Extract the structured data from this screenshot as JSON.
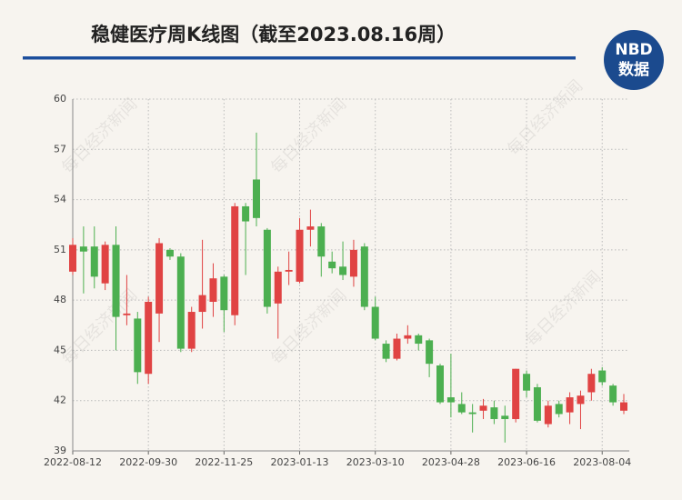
{
  "chart_data": {
    "type": "candlestick",
    "title": "稳健医疗周K线图（截至2023.08.16周）",
    "logo": {
      "top": "NBD",
      "bottom": "数据"
    },
    "watermark": "每日经济新闻",
    "categories": [
      "2022-08-12",
      null,
      null,
      null,
      null,
      null,
      null,
      "2022-09-30",
      null,
      null,
      null,
      null,
      null,
      null,
      "2022-11-25",
      null,
      null,
      null,
      null,
      null,
      null,
      "2023-01-13",
      null,
      null,
      null,
      null,
      null,
      null,
      "2023-03-10",
      null,
      null,
      null,
      null,
      null,
      null,
      "2023-04-28",
      null,
      null,
      null,
      null,
      null,
      null,
      "2023-06-16",
      null,
      null,
      null,
      null,
      null,
      null,
      "2023-08-04",
      null,
      null
    ],
    "open": [
      49.7,
      51.2,
      51.2,
      49.0,
      51.3,
      47.1,
      46.9,
      43.6,
      47.2,
      51.0,
      50.6,
      45.1,
      47.3,
      47.9,
      49.4,
      47.1,
      53.6,
      55.2,
      52.2,
      47.8,
      49.7,
      49.1,
      52.2,
      52.4,
      50.3,
      50.0,
      49.4,
      51.2,
      47.6,
      45.4,
      44.5,
      45.7,
      45.9,
      45.6,
      44.1,
      42.2,
      41.8,
      41.3,
      41.4,
      41.6,
      41.1,
      40.9,
      43.6,
      42.8,
      40.6,
      41.8,
      41.3,
      41.8,
      42.5,
      43.8,
      42.9,
      41.4
    ],
    "high": [
      51.7,
      52.4,
      52.4,
      51.5,
      52.4,
      49.5,
      47.3,
      48.2,
      51.7,
      51.1,
      50.8,
      47.6,
      51.6,
      50.2,
      49.5,
      53.8,
      53.8,
      58.0,
      52.3,
      50.0,
      50.9,
      52.9,
      53.4,
      52.6,
      50.9,
      51.5,
      51.6,
      51.4,
      48.2,
      45.6,
      46.0,
      46.5,
      46.0,
      45.7,
      44.2,
      44.8,
      42.5,
      41.8,
      42.1,
      42.0,
      41.7,
      43.9,
      43.8,
      43.0,
      42.0,
      42.0,
      42.5,
      42.6,
      43.9,
      44.0,
      43.0,
      42.4
    ],
    "low": [
      49.5,
      48.4,
      48.7,
      48.6,
      45.0,
      46.5,
      43.0,
      43.0,
      45.5,
      50.4,
      44.9,
      44.9,
      46.3,
      47.0,
      46.1,
      46.5,
      49.5,
      52.4,
      47.2,
      45.7,
      48.9,
      49.0,
      51.2,
      49.4,
      49.6,
      49.2,
      48.8,
      47.4,
      45.6,
      44.3,
      44.4,
      45.4,
      45.0,
      43.4,
      41.8,
      41.0,
      41.2,
      40.1,
      40.9,
      40.6,
      39.5,
      40.7,
      42.2,
      40.7,
      40.4,
      41.0,
      40.6,
      40.3,
      42.0,
      42.9,
      41.7,
      41.2
    ],
    "close": [
      51.3,
      50.9,
      49.4,
      51.3,
      47.0,
      47.2,
      43.7,
      47.9,
      51.4,
      50.6,
      45.1,
      47.3,
      48.3,
      49.3,
      47.4,
      53.6,
      52.7,
      52.9,
      47.6,
      49.7,
      49.8,
      52.2,
      52.4,
      50.6,
      49.9,
      49.5,
      51.0,
      47.6,
      45.7,
      44.5,
      45.7,
      45.9,
      45.4,
      44.2,
      41.9,
      41.9,
      41.3,
      41.2,
      41.7,
      40.9,
      40.9,
      43.9,
      42.6,
      40.8,
      41.7,
      41.2,
      42.2,
      42.3,
      43.6,
      43.1,
      41.9,
      41.9
    ],
    "up_color": "#e04343",
    "down_color": "#4caf50",
    "ylim": [
      39,
      60
    ],
    "yticks": [
      39,
      42,
      45,
      48,
      51,
      54,
      57,
      60
    ],
    "grid": true
  }
}
